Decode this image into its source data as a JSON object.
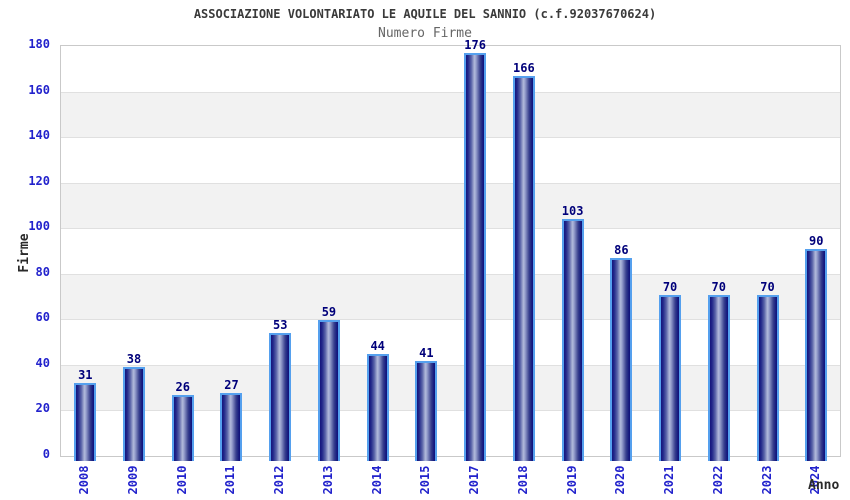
{
  "header": {
    "title": "ASSOCIAZIONE VOLONTARIATO LE AQUILE DEL SANNIO (c.f.92037670624)",
    "subtitle": "Numero Firme"
  },
  "chart_data": {
    "type": "bar",
    "title": "ASSOCIAZIONE VOLONTARIATO LE AQUILE DEL SANNIO (c.f.92037670624)",
    "subtitle": "Numero Firme",
    "xlabel": "Anno",
    "ylabel": "Firme",
    "categories": [
      "2008",
      "2009",
      "2010",
      "2011",
      "2012",
      "2013",
      "2014",
      "2015",
      "2017",
      "2018",
      "2019",
      "2020",
      "2021",
      "2022",
      "2023",
      "2024"
    ],
    "values": [
      31,
      38,
      26,
      27,
      53,
      59,
      44,
      41,
      176,
      166,
      103,
      86,
      70,
      70,
      70,
      90
    ],
    "ylim": [
      0,
      180
    ],
    "ytick_step": 20,
    "yticks": [
      0,
      20,
      40,
      60,
      80,
      100,
      120,
      140,
      160,
      180
    ],
    "grid": "horizontal gridlines with alternating gray/white bands",
    "legend": "none",
    "colors": {
      "bar_border": "#55a0ee",
      "bar_dark": "#10107a",
      "bar_highlight": "#b2badc",
      "tick_label": "#2222cc",
      "value_label": "#00007a",
      "band_gray": "#f2f2f2",
      "gridline": "#e0e0e0",
      "plot_border": "#c9c9c9",
      "title_text": "#3a3a3a",
      "subtitle_text": "#666666"
    }
  }
}
